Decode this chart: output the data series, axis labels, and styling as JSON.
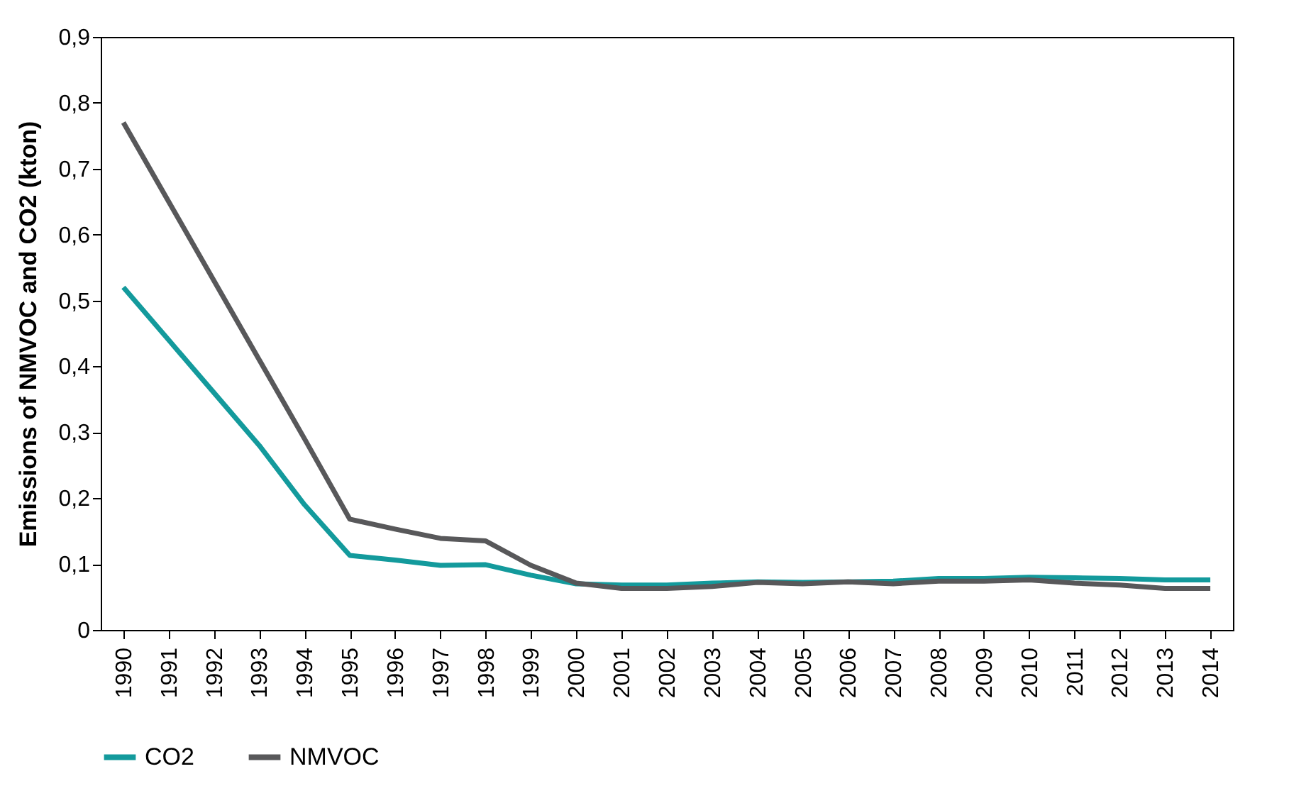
{
  "chart_data": {
    "type": "line",
    "ylabel": "Emissions of NMVOC and CO2 (kton)",
    "categories": [
      "1990",
      "1991",
      "1992",
      "1993",
      "1994",
      "1995",
      "1996",
      "1997",
      "1998",
      "1999",
      "2000",
      "2001",
      "2002",
      "2003",
      "2004",
      "2005",
      "2006",
      "2007",
      "2008",
      "2009",
      "2010",
      "2011",
      "2012",
      "2013",
      "2014"
    ],
    "series": [
      {
        "name": "CO2",
        "color": "#139a9c",
        "values": [
          0.52,
          0.44,
          0.36,
          0.28,
          0.19,
          0.113,
          0.106,
          0.098,
          0.099,
          0.083,
          0.07,
          0.068,
          0.068,
          0.071,
          0.073,
          0.072,
          0.073,
          0.074,
          0.078,
          0.078,
          0.08,
          0.079,
          0.078,
          0.076,
          0.076
        ]
      },
      {
        "name": "NMVOC",
        "color": "#58585a",
        "values": [
          0.77,
          0.65,
          0.53,
          0.41,
          0.29,
          0.168,
          0.153,
          0.139,
          0.135,
          0.098,
          0.071,
          0.063,
          0.063,
          0.066,
          0.072,
          0.07,
          0.073,
          0.07,
          0.074,
          0.074,
          0.076,
          0.071,
          0.068,
          0.063,
          0.063
        ]
      }
    ],
    "ylim": [
      0,
      0.9
    ],
    "yticks": [
      0,
      {
        "value": 0.1,
        "label": "0,1"
      },
      {
        "value": 0.2,
        "label": "0,2"
      },
      {
        "value": 0.3,
        "label": "0,3"
      },
      {
        "value": 0.4,
        "label": "0,4"
      },
      {
        "value": 0.5,
        "label": "0,5"
      },
      {
        "value": 0.6,
        "label": "0,6"
      },
      {
        "value": 0.7,
        "label": "0,7"
      },
      {
        "value": 0.8,
        "label": "0,8"
      },
      {
        "value": 0.9,
        "label": "0,9"
      }
    ],
    "legend": "bottom",
    "grid": false,
    "marker": "none",
    "line_style": "solid"
  }
}
